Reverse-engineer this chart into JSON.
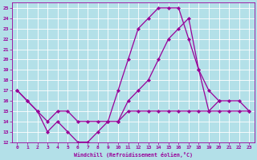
{
  "xlabel": "Windchill (Refroidissement éolien,°C)",
  "background_color": "#b3e0e8",
  "grid_color": "#ffffff",
  "line_color": "#990099",
  "xlim": [
    -0.5,
    23.5
  ],
  "ylim": [
    12,
    25.5
  ],
  "xticks": [
    0,
    1,
    2,
    3,
    4,
    5,
    6,
    7,
    8,
    9,
    10,
    11,
    12,
    13,
    14,
    15,
    16,
    17,
    18,
    19,
    20,
    21,
    22,
    23
  ],
  "yticks": [
    12,
    13,
    14,
    15,
    16,
    17,
    18,
    19,
    20,
    21,
    22,
    23,
    24,
    25
  ],
  "curve1_x": [
    0,
    1,
    2,
    3,
    4,
    5,
    6,
    7,
    8,
    9,
    10,
    11,
    12,
    13,
    14,
    15,
    16,
    17,
    18,
    19,
    20
  ],
  "curve1_y": [
    17,
    16,
    15,
    13,
    14,
    13,
    12,
    12,
    13,
    14,
    17,
    20,
    23,
    24,
    25,
    25,
    25,
    22,
    19,
    15,
    16
  ],
  "curve2_x": [
    0,
    1,
    2,
    3,
    4,
    5,
    6,
    7,
    8,
    9,
    10,
    11,
    12,
    13,
    14,
    15,
    16,
    17,
    18,
    19,
    20,
    21,
    22,
    23
  ],
  "curve2_y": [
    17,
    16,
    15,
    14,
    15,
    15,
    14,
    14,
    14,
    14,
    14,
    15,
    15,
    15,
    15,
    15,
    15,
    15,
    15,
    15,
    15,
    15,
    15,
    15
  ],
  "curve3_x": [
    10,
    11,
    12,
    13,
    14,
    15,
    16,
    17,
    18,
    19,
    20,
    21,
    22,
    23
  ],
  "curve3_y": [
    14,
    16,
    17,
    18,
    20,
    22,
    23,
    24,
    19,
    17,
    16,
    16,
    16,
    15
  ]
}
